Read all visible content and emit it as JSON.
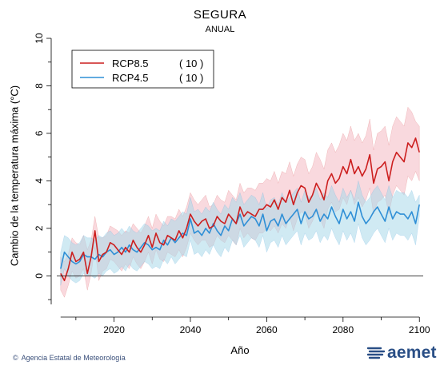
{
  "title": "SEGURA",
  "subtitle": "ANUAL",
  "credit": "Agencia Estatal de Meteorología",
  "copyright_symbol": "©",
  "logo_text": "aemet",
  "colors": {
    "rcp85": "#cc1f1f",
    "rcp85_band": "#f4b9c2",
    "rcp45": "#2f8fd6",
    "rcp45_band": "#a9d8ea",
    "logo": "#2a4f86"
  },
  "chart_data": {
    "type": "line",
    "title": "SEGURA",
    "subtitle": "ANUAL",
    "xlabel": "Año",
    "ylabel": "Cambio de la temperatura máxima (°C)",
    "xlim": [
      2005,
      2101
    ],
    "ylim": [
      -1.5,
      10
    ],
    "xticks": [
      2020,
      2040,
      2060,
      2080,
      2100
    ],
    "yticks": [
      0,
      2,
      4,
      6,
      8,
      10
    ],
    "zero_line": 0,
    "legend_position": "top-left",
    "x": [
      2006,
      2007,
      2008,
      2009,
      2010,
      2011,
      2012,
      2013,
      2014,
      2015,
      2016,
      2017,
      2018,
      2019,
      2020,
      2021,
      2022,
      2023,
      2024,
      2025,
      2026,
      2027,
      2028,
      2029,
      2030,
      2031,
      2032,
      2033,
      2034,
      2035,
      2036,
      2037,
      2038,
      2039,
      2040,
      2041,
      2042,
      2043,
      2044,
      2045,
      2046,
      2047,
      2048,
      2049,
      2050,
      2051,
      2052,
      2053,
      2054,
      2055,
      2056,
      2057,
      2058,
      2059,
      2060,
      2061,
      2062,
      2063,
      2064,
      2065,
      2066,
      2067,
      2068,
      2069,
      2070,
      2071,
      2072,
      2073,
      2074,
      2075,
      2076,
      2077,
      2078,
      2079,
      2080,
      2081,
      2082,
      2083,
      2084,
      2085,
      2086,
      2087,
      2088,
      2089,
      2090,
      2091,
      2092,
      2093,
      2094,
      2095,
      2096,
      2097,
      2098,
      2099,
      2100
    ],
    "series": [
      {
        "name": "RCP8.5",
        "count": "( 10 )",
        "color": "#cc1f1f",
        "values": [
          0.1,
          -0.2,
          0.3,
          1.0,
          0.6,
          0.7,
          1.0,
          0.1,
          0.8,
          1.9,
          0.6,
          0.9,
          1.0,
          1.4,
          1.3,
          1.1,
          0.9,
          1.2,
          1.0,
          1.5,
          1.2,
          1.0,
          1.3,
          1.7,
          1.2,
          1.8,
          1.4,
          1.3,
          1.7,
          1.6,
          1.5,
          1.9,
          1.6,
          2.0,
          2.6,
          2.3,
          2.1,
          2.3,
          2.4,
          2.0,
          2.1,
          2.5,
          2.3,
          2.2,
          2.6,
          2.4,
          2.2,
          2.9,
          2.5,
          2.7,
          2.6,
          2.5,
          2.8,
          2.8,
          3.0,
          2.9,
          3.2,
          2.8,
          3.3,
          3.1,
          3.6,
          3.0,
          3.5,
          3.8,
          3.7,
          3.1,
          3.4,
          3.9,
          3.6,
          3.2,
          4.0,
          4.3,
          3.9,
          4.1,
          4.6,
          4.3,
          4.9,
          4.3,
          4.6,
          4.2,
          4.5,
          5.1,
          3.9,
          4.5,
          4.6,
          4.8,
          4.0,
          4.8,
          5.2,
          5.0,
          4.8,
          5.6,
          5.4,
          5.8,
          5.2
        ],
        "upper": [
          0.8,
          0.6,
          0.9,
          1.6,
          1.4,
          1.3,
          1.7,
          1.1,
          1.5,
          2.5,
          1.6,
          1.6,
          1.7,
          2.1,
          2.0,
          1.9,
          1.7,
          1.9,
          1.8,
          2.2,
          2.0,
          1.8,
          2.1,
          2.5,
          2.0,
          2.6,
          2.3,
          2.1,
          2.5,
          2.5,
          2.4,
          2.8,
          2.5,
          2.9,
          3.5,
          3.2,
          3.0,
          3.2,
          3.4,
          2.9,
          3.0,
          3.4,
          3.2,
          3.1,
          3.6,
          3.4,
          3.2,
          3.9,
          3.5,
          3.7,
          3.7,
          3.6,
          3.9,
          3.9,
          4.1,
          4.0,
          4.4,
          3.9,
          4.4,
          4.3,
          4.8,
          4.2,
          4.7,
          5.0,
          4.9,
          4.3,
          4.6,
          5.2,
          4.9,
          4.5,
          5.3,
          5.6,
          5.2,
          5.5,
          6.0,
          5.7,
          6.3,
          5.7,
          6.0,
          5.6,
          5.9,
          6.6,
          5.3,
          6.0,
          6.1,
          6.3,
          5.5,
          6.3,
          6.7,
          6.5,
          6.3,
          7.1,
          6.9,
          6.5,
          6.3
        ],
        "lower": [
          -0.6,
          -0.9,
          -0.4,
          0.2,
          -0.1,
          0.0,
          0.3,
          -0.6,
          0.1,
          1.2,
          -0.2,
          0.2,
          0.3,
          0.7,
          0.6,
          0.4,
          0.2,
          0.5,
          0.3,
          0.8,
          0.5,
          0.3,
          0.6,
          1.0,
          0.5,
          1.1,
          0.7,
          0.6,
          1.0,
          0.9,
          0.8,
          1.1,
          0.8,
          1.2,
          1.8,
          1.5,
          1.3,
          1.5,
          1.5,
          1.2,
          1.3,
          1.7,
          1.5,
          1.4,
          1.7,
          1.5,
          1.3,
          2.0,
          1.6,
          1.8,
          1.6,
          1.5,
          1.8,
          1.8,
          2.0,
          1.9,
          2.1,
          1.8,
          2.2,
          2.0,
          2.5,
          1.9,
          2.4,
          2.7,
          2.6,
          2.0,
          2.3,
          2.7,
          2.4,
          2.0,
          2.8,
          3.1,
          2.7,
          2.8,
          3.3,
          3.0,
          3.6,
          3.0,
          3.3,
          2.9,
          3.2,
          3.7,
          2.6,
          3.1,
          3.2,
          3.4,
          2.6,
          3.4,
          3.8,
          3.6,
          3.4,
          4.2,
          4.0,
          4.4,
          4.0
        ]
      },
      {
        "name": "RCP4.5",
        "count": "( 10 )",
        "color": "#2f8fd6",
        "values": [
          0.3,
          1.0,
          0.8,
          0.6,
          0.5,
          0.6,
          0.9,
          0.8,
          0.8,
          0.7,
          0.9,
          0.8,
          1.0,
          1.1,
          0.9,
          1.0,
          1.2,
          1.0,
          1.3,
          1.1,
          1.0,
          1.2,
          1.4,
          1.3,
          1.1,
          1.2,
          1.1,
          1.5,
          1.3,
          1.6,
          1.4,
          1.6,
          1.8,
          1.7,
          2.4,
          1.8,
          1.9,
          1.7,
          2.0,
          1.8,
          2.2,
          1.9,
          1.7,
          2.1,
          1.9,
          2.4,
          2.2,
          2.6,
          2.1,
          2.3,
          2.5,
          2.4,
          2.1,
          2.6,
          1.9,
          2.3,
          2.4,
          2.1,
          2.6,
          2.2,
          2.4,
          2.6,
          2.8,
          2.2,
          2.7,
          2.4,
          2.5,
          2.8,
          2.3,
          2.6,
          2.4,
          2.9,
          2.5,
          2.2,
          2.8,
          2.4,
          2.7,
          2.3,
          3.1,
          2.5,
          2.2,
          2.4,
          2.7,
          2.9,
          2.6,
          2.3,
          2.9,
          2.4,
          2.7,
          2.6,
          2.6,
          2.4,
          2.7,
          2.2,
          3.0
        ],
        "upper": [
          1.0,
          1.7,
          1.6,
          1.4,
          1.3,
          1.4,
          1.7,
          1.6,
          1.6,
          1.5,
          1.7,
          1.6,
          1.8,
          1.9,
          1.7,
          1.8,
          2.0,
          1.8,
          2.1,
          1.9,
          1.8,
          2.0,
          2.2,
          2.1,
          1.9,
          2.0,
          1.9,
          2.3,
          2.1,
          2.4,
          2.3,
          2.5,
          2.7,
          2.6,
          3.3,
          2.7,
          2.8,
          2.6,
          2.9,
          2.7,
          3.1,
          2.8,
          2.6,
          3.0,
          2.8,
          3.3,
          3.1,
          3.5,
          3.0,
          3.2,
          3.4,
          3.3,
          3.0,
          3.5,
          2.8,
          3.2,
          3.3,
          3.0,
          3.5,
          3.1,
          3.3,
          3.5,
          3.7,
          3.1,
          3.6,
          3.3,
          3.4,
          3.7,
          3.2,
          3.5,
          3.3,
          3.8,
          3.4,
          3.1,
          3.7,
          3.3,
          3.6,
          3.2,
          4.0,
          3.4,
          3.1,
          3.3,
          3.6,
          3.8,
          3.5,
          3.2,
          3.8,
          3.3,
          3.6,
          3.5,
          3.5,
          3.3,
          3.6,
          3.1,
          3.4
        ],
        "lower": [
          -0.4,
          0.3,
          0.0,
          -0.2,
          -0.3,
          -0.2,
          0.1,
          0.0,
          0.0,
          -0.1,
          0.1,
          0.0,
          0.2,
          0.3,
          0.1,
          0.2,
          0.4,
          0.2,
          0.5,
          0.3,
          0.2,
          0.4,
          0.6,
          0.5,
          0.3,
          0.4,
          0.3,
          0.7,
          0.5,
          0.8,
          0.5,
          0.7,
          0.9,
          0.8,
          1.5,
          0.9,
          1.0,
          0.8,
          1.1,
          0.9,
          1.3,
          1.0,
          0.8,
          1.2,
          1.0,
          1.5,
          1.3,
          1.7,
          1.2,
          1.4,
          1.6,
          1.5,
          1.2,
          1.7,
          1.0,
          1.4,
          1.5,
          1.2,
          1.7,
          1.3,
          1.5,
          1.7,
          1.9,
          1.3,
          1.8,
          1.5,
          1.6,
          1.9,
          1.4,
          1.7,
          1.5,
          2.0,
          1.6,
          1.3,
          1.9,
          1.5,
          1.8,
          1.4,
          2.2,
          1.6,
          1.3,
          1.5,
          1.8,
          2.0,
          1.7,
          1.4,
          2.0,
          1.5,
          1.8,
          1.7,
          1.7,
          1.5,
          1.8,
          1.3,
          2.5
        ]
      }
    ]
  }
}
